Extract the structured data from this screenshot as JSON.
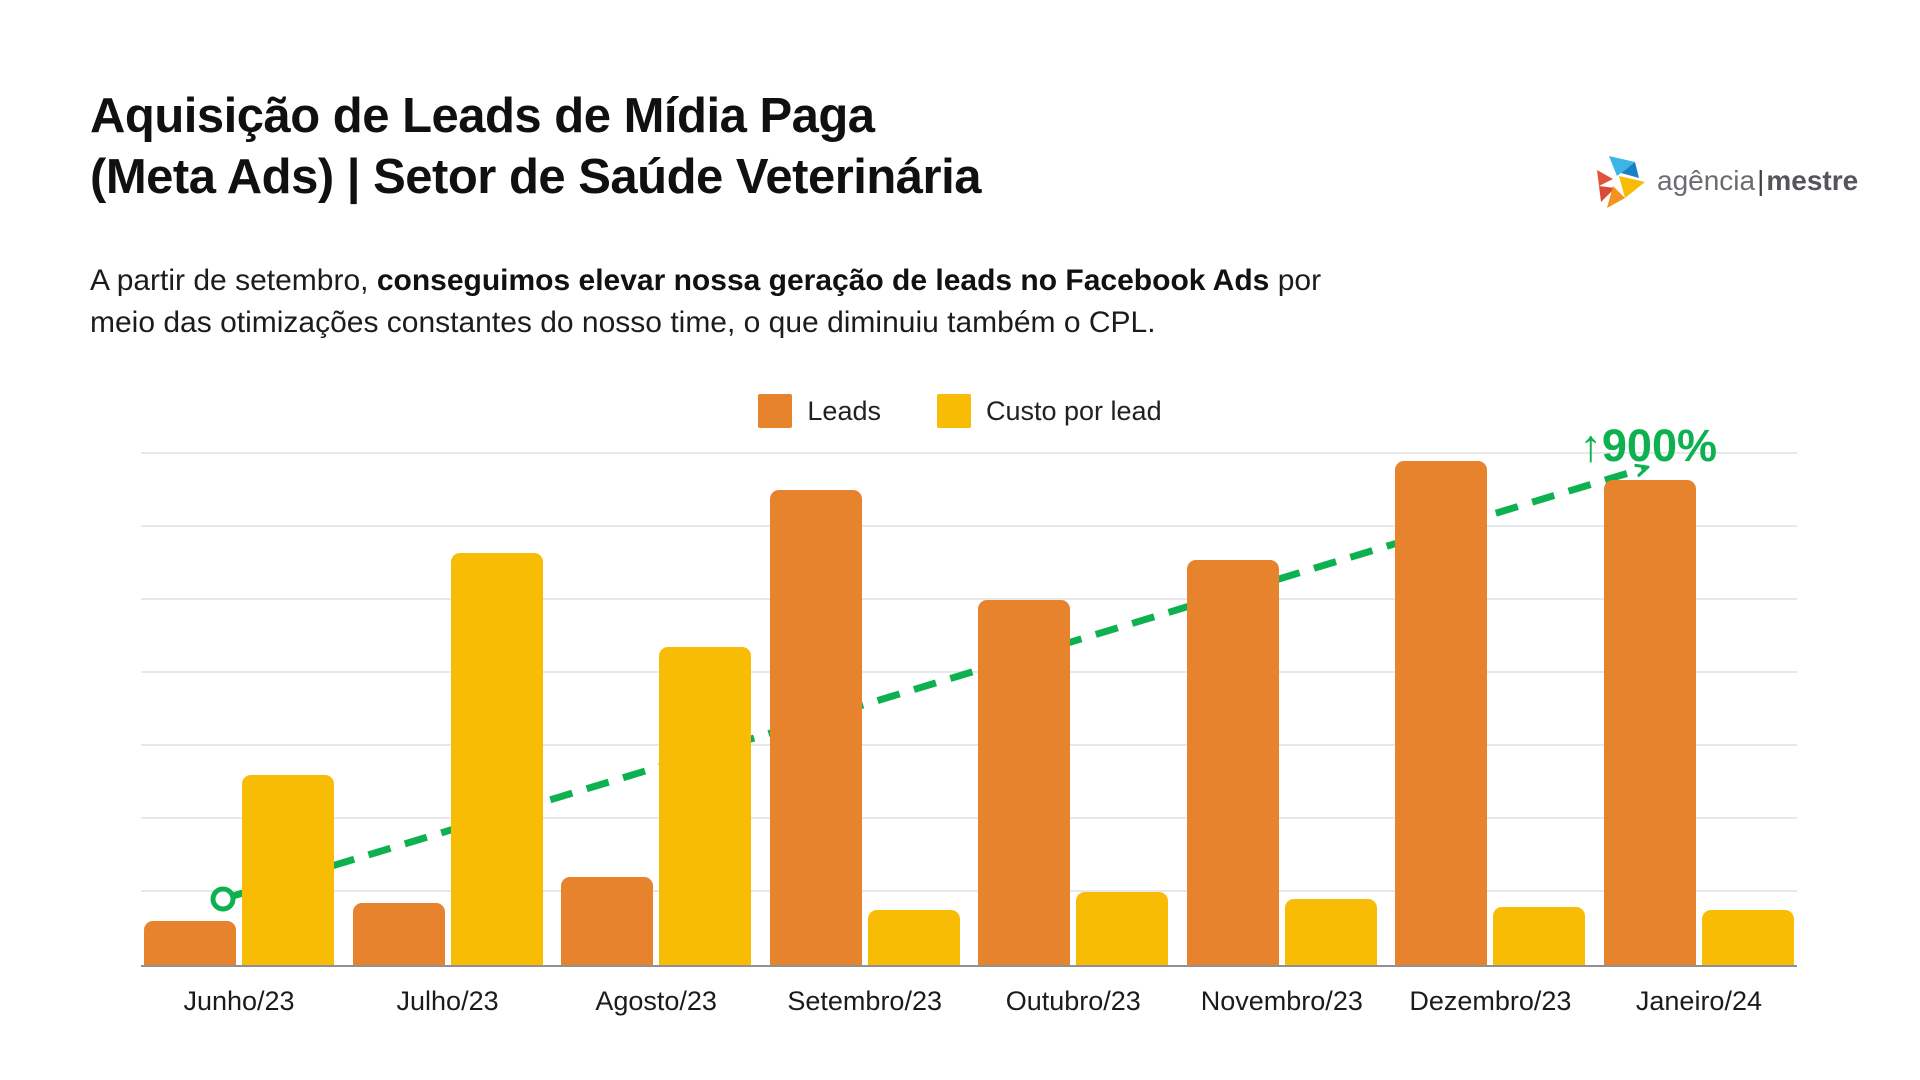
{
  "header": {
    "title_line1": "Aquisição de Leads de Mídia Paga",
    "title_line2": "(Meta Ads) | Setor de Saúde Veterinária",
    "subtitle_prefix": "A partir de setembro, ",
    "subtitle_bold": "conseguimos elevar nossa geração de leads no Facebook Ads",
    "subtitle_suffix": " por",
    "subtitle_line2": "meio das otimizações constantes do nosso time, o que diminuiu também o CPL."
  },
  "logo": {
    "name_light": "agência",
    "separator": "|",
    "name_bold": "mestre",
    "icon": "pinwheel-star-icon"
  },
  "legend": [
    {
      "label": "Leads",
      "color": "#E8832D"
    },
    {
      "label": "Custo por lead",
      "color": "#F9BC05"
    }
  ],
  "annotation": {
    "label": "↑900%",
    "color": "#0DB14F"
  },
  "chart_data": {
    "type": "bar",
    "title": "",
    "xlabel": "",
    "ylabel": "",
    "categories": [
      "Junho/23",
      "Julho/23",
      "Agosto/23",
      "Setembro/23",
      "Outubro/23",
      "Novembro/23",
      "Dezembro/23",
      "Janeiro/24"
    ],
    "series": [
      {
        "name": "Leads",
        "color": "#E8832D",
        "values": [
          0.6,
          0.85,
          1.2,
          6.5,
          5.0,
          5.55,
          6.9,
          6.65
        ]
      },
      {
        "name": "Custo por lead",
        "color": "#F9BC05",
        "values": [
          2.6,
          5.65,
          4.35,
          0.75,
          1.0,
          0.9,
          0.8,
          0.75
        ]
      }
    ],
    "value_scale": "relative gridline units (chart displays no numeric y-axis)",
    "ylim": [
      0,
      7.5
    ],
    "gridline_count": 7,
    "grid": "horizontal",
    "legend_position": "top-center",
    "trendline": {
      "series": "Leads",
      "style": "dashed",
      "color": "#0DB14F",
      "start_category": "Junho/23",
      "end_category": "Janeiro/24",
      "start_marker": "open-circle",
      "end_marker": "arrow",
      "annotation": "↑900%"
    }
  }
}
